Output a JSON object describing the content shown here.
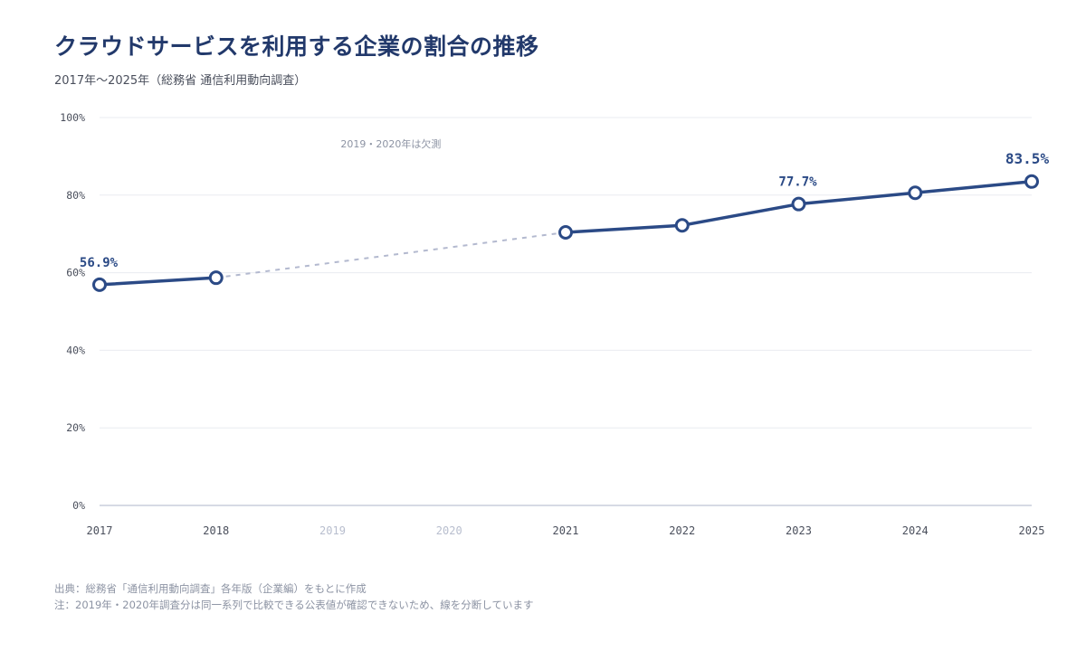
{
  "header": {
    "title": "クラウドサービスを利用する企業の割合の推移",
    "subtitle": "2017年〜2025年（総務省 通信利用動向調査）"
  },
  "footer": {
    "source": "出典：総務省「通信利用動向調査」各年版（企業編）をもとに作成",
    "note": "注：2019年・2020年調査分は同一系列で比較できる公表値が確認できないため、線を分断しています"
  },
  "colors": {
    "line": "#2b4a86",
    "gap_line": "#b3b9cf",
    "grid": "#e9ebf0",
    "axis": "#c9cddb",
    "tick_text": "#4a4f5c",
    "missing_tick_text": "#b8bece",
    "marker_fill": "#ffffff"
  },
  "chart_data": {
    "type": "line",
    "categories": [
      "2017",
      "2018",
      "2019",
      "2020",
      "2021",
      "2022",
      "2023",
      "2024",
      "2025"
    ],
    "missing_categories": [
      "2019",
      "2020"
    ],
    "series": [
      {
        "values": [
          56.9,
          58.7,
          null,
          null,
          70.4,
          72.2,
          77.7,
          80.6,
          83.5
        ]
      }
    ],
    "ylim": [
      0,
      100
    ],
    "yticks": [
      "0%",
      "20%",
      "40%",
      "60%",
      "80%",
      "100%"
    ],
    "ytick_values": [
      0,
      20,
      40,
      60,
      80,
      100
    ],
    "grid": true,
    "gap_style": "dashed",
    "data_labels": [
      {
        "category": "2017",
        "text": "56.9%"
      },
      {
        "category": "2023",
        "text": "77.7%"
      },
      {
        "category": "2025",
        "text": "83.5%"
      }
    ],
    "annotations": [
      {
        "text": "2019・2020年は欠測"
      }
    ],
    "xlabel": "",
    "ylabel": ""
  }
}
